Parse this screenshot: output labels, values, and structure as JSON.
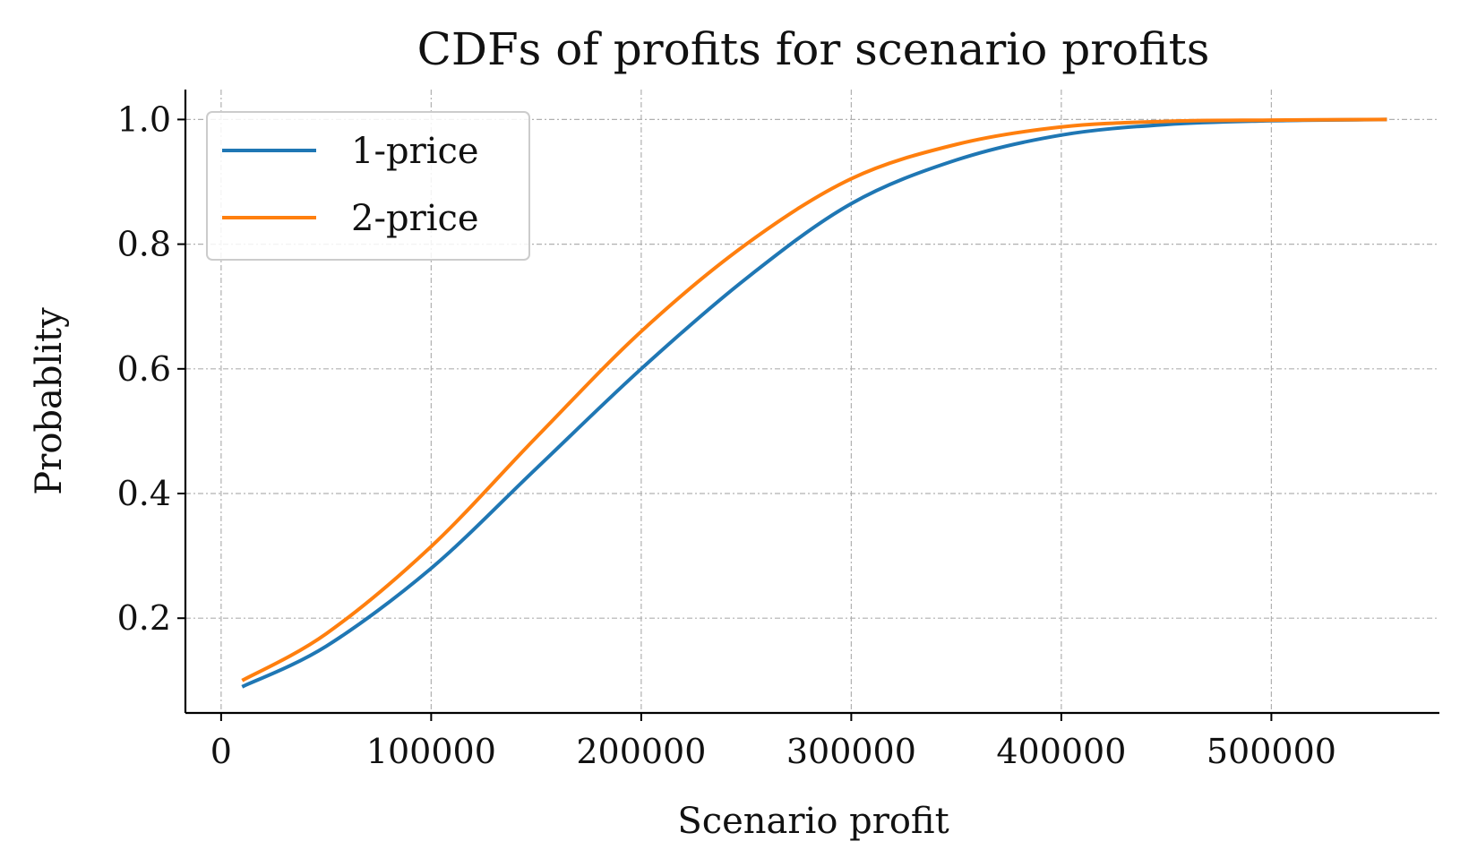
{
  "chart_data": {
    "type": "line",
    "title": "CDFs of profits for scenario profits",
    "xlabel": "Scenario profit",
    "ylabel": "Probablity",
    "xlim": [
      -17000,
      580000
    ],
    "ylim": [
      0.048,
      1.048
    ],
    "xticks": [
      0,
      100000,
      200000,
      300000,
      400000,
      500000
    ],
    "xtick_labels": [
      "0",
      "100000",
      "200000",
      "300000",
      "400000",
      "500000"
    ],
    "yticks": [
      0.2,
      0.4,
      0.6,
      0.8,
      1.0
    ],
    "ytick_labels": [
      "0.2",
      "0.4",
      "0.6",
      "0.8",
      "1.0"
    ],
    "grid": true,
    "legend_position": "top-left",
    "series": [
      {
        "name": "1-price",
        "color": "#1f77b4",
        "x": [
          10000,
          50000,
          100000,
          150000,
          200000,
          250000,
          300000,
          350000,
          400000,
          450000,
          500000,
          555000
        ],
        "y": [
          0.09,
          0.155,
          0.28,
          0.44,
          0.6,
          0.745,
          0.865,
          0.935,
          0.975,
          0.992,
          0.998,
          1.0
        ]
      },
      {
        "name": "2-price",
        "color": "#ff7f0e",
        "x": [
          10000,
          50000,
          100000,
          150000,
          200000,
          250000,
          300000,
          350000,
          400000,
          450000,
          500000,
          555000
        ],
        "y": [
          0.1,
          0.175,
          0.315,
          0.49,
          0.66,
          0.8,
          0.905,
          0.96,
          0.988,
          0.997,
          0.999,
          1.0
        ]
      }
    ]
  }
}
